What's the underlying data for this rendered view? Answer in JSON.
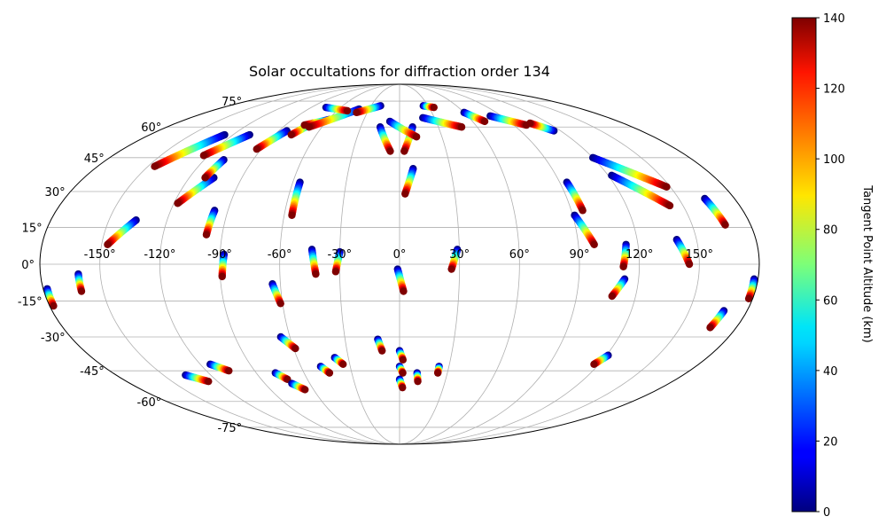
{
  "chart_data": {
    "type": "scatter",
    "title": "Solar occultations for diffraction order 134",
    "projection": "mollweide",
    "grid": true,
    "lon_ticks": [
      -150,
      -120,
      -90,
      -60,
      -30,
      0,
      30,
      60,
      90,
      120,
      150
    ],
    "lon_tick_labels": [
      "-150°",
      "-120°",
      "-90°",
      "-60°",
      "-30°",
      "0°",
      "30°",
      "60°",
      "90°",
      "120°",
      "150°"
    ],
    "lat_ticks": [
      -75,
      -60,
      -45,
      -30,
      -15,
      0,
      15,
      30,
      45,
      60,
      75
    ],
    "lat_tick_labels": [
      "-75°",
      "-60°",
      "-45°",
      "-30°",
      "-15°",
      "0°",
      "15°",
      "30°",
      "45°",
      "60°",
      "75°"
    ],
    "colorbar": {
      "label": "Tangent Point Altitude (km)",
      "colormap": "jet",
      "range": [
        0,
        140
      ],
      "ticks": [
        0,
        20,
        40,
        60,
        80,
        100,
        120,
        140
      ],
      "tick_labels": [
        "0",
        "20",
        "40",
        "60",
        "80",
        "100",
        "120",
        "140"
      ],
      "placement": "right"
    },
    "tracks": [
      {
        "lon0": -178,
        "lat0": -10,
        "lon1": -178,
        "lat1": -17,
        "alt0": 0,
        "alt1": 140
      },
      {
        "lon0": -161,
        "lat0": -4,
        "lon1": -161,
        "lat1": -11,
        "alt0": 0,
        "alt1": 140
      },
      {
        "lon0": -136,
        "lat0": 18,
        "lon1": -147,
        "lat1": 8,
        "alt0": 0,
        "alt1": 140
      },
      {
        "lon0": -97,
        "lat0": 22,
        "lon1": -98,
        "lat1": 12,
        "alt0": 0,
        "alt1": 140
      },
      {
        "lon0": -88,
        "lat0": 4,
        "lon1": -89,
        "lat1": -5,
        "alt0": 0,
        "alt1": 140
      },
      {
        "lon0": -56,
        "lat0": 34,
        "lon1": -56,
        "lat1": 20,
        "alt0": 0,
        "alt1": 140
      },
      {
        "lon0": -64,
        "lat0": -8,
        "lon1": -61,
        "lat1": -16,
        "alt0": 0,
        "alt1": 140
      },
      {
        "lon0": -44,
        "lat0": 6,
        "lon1": -42,
        "lat1": -4,
        "alt0": 0,
        "alt1": 140
      },
      {
        "lon0": -30,
        "lat0": 5,
        "lon1": -32,
        "lat1": -3,
        "alt0": 0,
        "alt1": 140
      },
      {
        "lon0": -1,
        "lat0": -2,
        "lon1": 2,
        "lat1": -11,
        "alt0": 0,
        "alt1": 140
      },
      {
        "lon0": 29,
        "lat0": 6,
        "lon1": 26,
        "lat1": -2,
        "alt0": 0,
        "alt1": 140
      },
      {
        "lon0": 8,
        "lat0": 40,
        "lon1": 3,
        "lat1": 29,
        "alt0": 0,
        "alt1": 140
      },
      {
        "lon0": 94,
        "lat0": 34,
        "lon1": 96,
        "lat1": 22,
        "alt0": 0,
        "alt1": 140
      },
      {
        "lon0": 91,
        "lat0": 20,
        "lon1": 98,
        "lat1": 8,
        "alt0": 0,
        "alt1": 140
      },
      {
        "lon0": 114,
        "lat0": 8,
        "lon1": 112,
        "lat1": -1,
        "alt0": 0,
        "alt1": 140
      },
      {
        "lon0": 113,
        "lat0": -6,
        "lon1": 108,
        "lat1": -13,
        "alt0": 0,
        "alt1": 140
      },
      {
        "lon0": 140,
        "lat0": 10,
        "lon1": 145,
        "lat1": 0,
        "alt0": 0,
        "alt1": 140
      },
      {
        "lon0": 164,
        "lat0": 27,
        "lon1": 167,
        "lat1": 16,
        "alt0": 0,
        "alt1": 140
      },
      {
        "lon0": 178,
        "lat0": -6,
        "lon1": 178,
        "lat1": -14,
        "alt0": 0,
        "alt1": 140
      },
      {
        "lon0": 168,
        "lat0": -19,
        "lon1": 166,
        "lat1": -26,
        "alt0": 0,
        "alt1": 140
      },
      {
        "lon0": -106,
        "lat0": 36,
        "lon1": -118,
        "lat1": 25,
        "alt0": 0,
        "alt1": 140
      },
      {
        "lon0": -108,
        "lat0": 44,
        "lon1": -111,
        "lat1": 36,
        "alt0": 0,
        "alt1": 140
      },
      {
        "lon0": -126,
        "lat0": 56,
        "lon1": -146,
        "lat1": 41,
        "alt0": 0,
        "alt1": 140
      },
      {
        "lon0": -108,
        "lat0": 56,
        "lon1": -123,
        "lat1": 46,
        "alt0": 0,
        "alt1": 140
      },
      {
        "lon0": -84,
        "lat0": 58,
        "lon1": -93,
        "lat1": 49,
        "alt0": 0,
        "alt1": 140
      },
      {
        "lon0": -70,
        "lat0": 62,
        "lon1": -78,
        "lat1": 56,
        "alt0": 0,
        "alt1": 140
      },
      {
        "lon0": -59,
        "lat0": 64,
        "lon1": -75,
        "lat1": 61,
        "alt0": 0,
        "alt1": 140
      },
      {
        "lon0": -15,
        "lat0": 60,
        "lon1": -6,
        "lat1": 48,
        "alt0": 0,
        "alt1": 140
      },
      {
        "lon0": 10,
        "lat0": 60,
        "lon1": 3,
        "lat1": 48,
        "alt0": 0,
        "alt1": 140
      },
      {
        "lon0": -8,
        "lat0": 63,
        "lon1": 12,
        "lat1": 55,
        "alt0": 0,
        "alt1": 140
      },
      {
        "lon0": -40,
        "lat0": 70,
        "lon1": -70,
        "lat1": 60,
        "alt0": 0,
        "alt1": 140
      },
      {
        "lon0": -75,
        "lat0": 71,
        "lon1": -50,
        "lat1": 69,
        "alt0": 0,
        "alt1": 140
      },
      {
        "lon0": -20,
        "lat0": 72,
        "lon1": -40,
        "lat1": 68,
        "alt0": 0,
        "alt1": 140
      },
      {
        "lon0": 20,
        "lat0": 65,
        "lon1": 48,
        "lat1": 60,
        "alt0": 0,
        "alt1": 140
      },
      {
        "lon0": 60,
        "lat0": 68,
        "lon1": 70,
        "lat1": 63,
        "alt0": 0,
        "alt1": 140
      },
      {
        "lon0": 80,
        "lat0": 66,
        "lon1": 100,
        "lat1": 61,
        "alt0": 0,
        "alt1": 140
      },
      {
        "lon0": 115,
        "lat0": 58,
        "lon1": 105,
        "lat1": 62,
        "alt0": 0,
        "alt1": 140
      },
      {
        "lon0": 120,
        "lat0": 45,
        "lon1": 148,
        "lat1": 32,
        "alt0": 0,
        "alt1": 140
      },
      {
        "lon0": 122,
        "lat0": 37,
        "lon1": 143,
        "lat1": 24,
        "alt0": 0,
        "alt1": 140
      },
      {
        "lon0": 25,
        "lat0": 72,
        "lon1": 35,
        "lat1": 71,
        "alt0": 0,
        "alt1": 140
      },
      {
        "lon0": -65,
        "lat0": -30,
        "lon1": -59,
        "lat1": -35,
        "alt0": 0,
        "alt1": 140
      },
      {
        "lon0": -48,
        "lat0": -43,
        "lon1": -44,
        "lat1": -46,
        "alt0": 0,
        "alt1": 140
      },
      {
        "lon0": -38,
        "lat0": -39,
        "lon1": -34,
        "lat1": -42,
        "alt0": 0,
        "alt1": 140
      },
      {
        "lon0": -12,
        "lat0": -31,
        "lon1": -10,
        "lat1": -36,
        "alt0": 0,
        "alt1": 140
      },
      {
        "lon0": 0,
        "lat0": -36,
        "lon1": 2,
        "lat1": -40,
        "alt0": 0,
        "alt1": 140
      },
      {
        "lon0": 0,
        "lat0": -43,
        "lon1": 2,
        "lat1": -46,
        "alt0": 0,
        "alt1": 140
      },
      {
        "lon0": 0,
        "lat0": -49,
        "lon1": 2,
        "lat1": -53,
        "alt0": 0,
        "alt1": 140
      },
      {
        "lon0": 11,
        "lat0": -46,
        "lon1": 12,
        "lat1": -50,
        "alt0": 0,
        "alt1": 140
      },
      {
        "lon0": 24,
        "lat0": -43,
        "lon1": 24,
        "lat1": -46,
        "alt0": 0,
        "alt1": 140
      },
      {
        "lon0": -78,
        "lat0": -46,
        "lon1": -73,
        "lat1": -49,
        "alt0": 0,
        "alt1": 140
      },
      {
        "lon0": -72,
        "lat0": -51,
        "lon1": -66,
        "lat1": -54,
        "alt0": 0,
        "alt1": 140
      },
      {
        "lon0": -114,
        "lat0": -42,
        "lon1": -106,
        "lat1": -45,
        "alt0": 0,
        "alt1": 140
      },
      {
        "lon0": -136,
        "lat0": -47,
        "lon1": -126,
        "lat1": -50,
        "alt0": 0,
        "alt1": 140
      },
      {
        "lon0": 121,
        "lat0": -38,
        "lon1": 117,
        "lat1": -42,
        "alt0": 0,
        "alt1": 140
      }
    ]
  }
}
